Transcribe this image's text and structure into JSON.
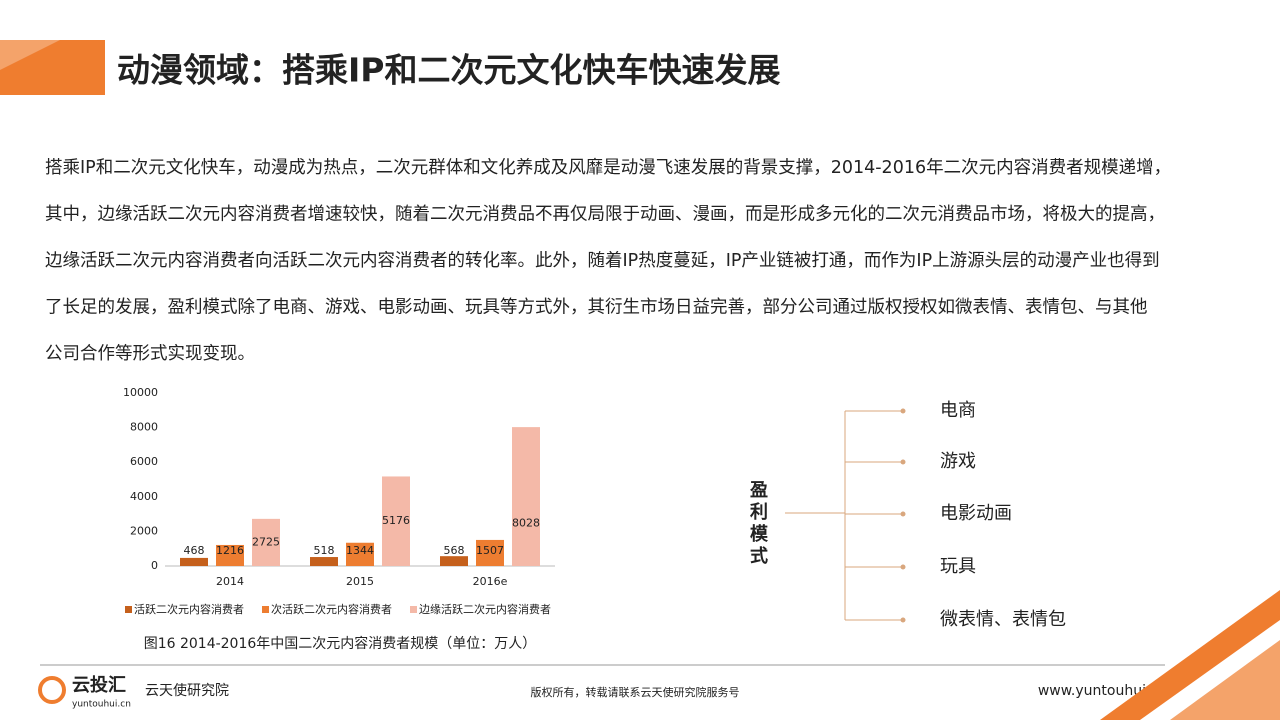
{
  "header": {
    "title": "动漫领域：搭乘IP和二次元文化快车快速发展"
  },
  "paragraph": {
    "lines": [
      "搭乘IP和二次元文化快车，动漫成为热点，二次元群体和文化养成及风靡是动漫飞速发展的背景支撑，2014-2016年二次元内容消费者规模递增，",
      "其中，边缘活跃二次元内容消费者增速较快，随着二次元消费品不再仅局限于动画、漫画，而是形成多元化的二次元消费品市场，将极大的提高，",
      "边缘活跃二次元内容消费者向活跃二次元内容消费者的转化率。此外，随着IP热度蔓延，IP产业链被打通，而作为IP上游源头层的动漫产业也得到",
      "了长足的发展，盈利模式除了电商、游戏、电影动画、玩具等方式外，其衍生市场日益完善，部分公司通过版权授权如微表情、表情包、与其他",
      "公司合作等形式实现变现。"
    ]
  },
  "chart_data": {
    "type": "bar",
    "title": "图16  2014-2016年中国二次元内容消费者规模（单位：万人）",
    "categories": [
      "2014",
      "2015",
      "2016e"
    ],
    "series": [
      {
        "name": "活跃二次元内容消费者",
        "color": "#c5601c",
        "values": [
          468,
          518,
          568
        ]
      },
      {
        "name": "次活跃二次元内容消费者",
        "color": "#ed7d31",
        "values": [
          1216,
          1344,
          1507
        ]
      },
      {
        "name": "边缘活跃二次元内容消费者",
        "color": "#f4b9a8",
        "values": [
          2725,
          5176,
          8028
        ]
      }
    ],
    "ylim": [
      0,
      10000
    ],
    "yticks": [
      0,
      2000,
      4000,
      6000,
      8000,
      10000
    ],
    "grid": false,
    "legend": "bottom"
  },
  "diagram": {
    "root": "盈利模式",
    "branches": [
      "电商",
      "游戏",
      "电影动画",
      "玩具",
      "微表情、表情包"
    ]
  },
  "footer": {
    "logo": "云投汇",
    "logo_url": "yuntouhui.cn",
    "org": "云天使研究院",
    "copyright": "版权所有，转载请联系云天使研究院服务号",
    "website": "www.yuntouhui.cn"
  }
}
